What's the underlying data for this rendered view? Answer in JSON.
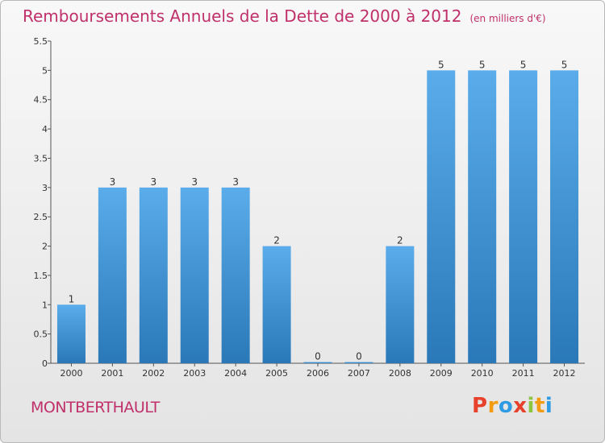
{
  "header": {
    "title": "Remboursements Annuels de la Dette de 2000 à 2012",
    "subtitle": "(en milliers d'€)"
  },
  "footer": {
    "commune": "MONTBERTHAULT",
    "logo_letters": [
      "P",
      "r",
      "o",
      "x",
      "i",
      "t",
      "i"
    ],
    "logo_colors": [
      "#e8412b",
      "#f39c12",
      "#2f9be2",
      "#e8412b",
      "#8cc63e",
      "#f39c12",
      "#2f9be2"
    ]
  },
  "chart_data": {
    "type": "bar",
    "title": "Remboursements Annuels de la Dette de 2000 à 2012",
    "subtitle": "(en milliers d'€)",
    "xlabel": "",
    "ylabel": "",
    "categories": [
      "2000",
      "2001",
      "2002",
      "2003",
      "2004",
      "2005",
      "2006",
      "2007",
      "2008",
      "2009",
      "2010",
      "2011",
      "2012"
    ],
    "values": [
      1,
      3,
      3,
      3,
      3,
      2,
      0,
      0,
      2,
      5,
      5,
      5,
      5
    ],
    "data_labels": [
      "1",
      "3",
      "3",
      "3",
      "3",
      "2",
      "0",
      "0",
      "2",
      "5",
      "5",
      "5",
      "5"
    ],
    "ylim": [
      0,
      5.5
    ],
    "yticks": [
      0,
      0.5,
      1,
      1.5,
      2,
      2.5,
      3,
      3.5,
      4,
      4.5,
      5,
      5.5
    ],
    "ytick_labels": [
      "0",
      "0.5",
      "1",
      "1.5",
      "2",
      "2.5",
      "3",
      "3.5",
      "4",
      "4.5",
      "5",
      "5.5"
    ],
    "grid": false,
    "bar_color_top": "#5aacea",
    "bar_color_bottom": "#2a78b8"
  }
}
